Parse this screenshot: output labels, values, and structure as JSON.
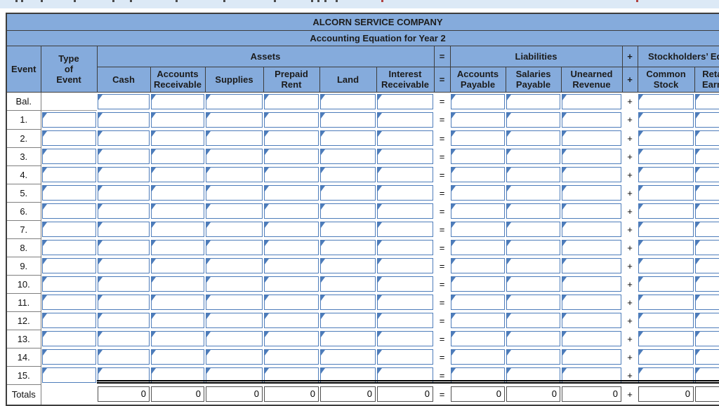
{
  "colors": {
    "header_blue": "#85abdc",
    "input_border_blue": "#4d7cba",
    "strip_blue": "#dce9f6"
  },
  "table": {
    "title": "ALCORN SERVICE COMPANY",
    "subtitle": "Accounting Equation for Year 2",
    "operators": {
      "equals": "=",
      "plus": "+"
    },
    "columns": {
      "event": "Event",
      "type_of_event": "Type\nof\nEvent",
      "assets_group": "Assets",
      "liabilities_group": "Liabilities",
      "equity_group": "Stockholders’ Equity",
      "asset_columns": [
        "Cash",
        "Accounts\nReceivable",
        "Supplies",
        "Prepaid\nRent",
        "Land",
        "Interest\nReceivable"
      ],
      "liability_columns": [
        "Accounts\nPayable",
        "Salaries\nPayable",
        "Unearned\nRevenue"
      ],
      "equity_columns": [
        "Common\nStock",
        "Retained\nEarnings"
      ]
    },
    "rows": [
      {
        "label": "Bal.",
        "has_type_input": false
      },
      {
        "label": "1.",
        "has_type_input": true
      },
      {
        "label": "2.",
        "has_type_input": true
      },
      {
        "label": "3.",
        "has_type_input": true
      },
      {
        "label": "4.",
        "has_type_input": true
      },
      {
        "label": "5.",
        "has_type_input": true
      },
      {
        "label": "6.",
        "has_type_input": true
      },
      {
        "label": "7.",
        "has_type_input": true
      },
      {
        "label": "8.",
        "has_type_input": true
      },
      {
        "label": "9.",
        "has_type_input": true
      },
      {
        "label": "10.",
        "has_type_input": true
      },
      {
        "label": "11.",
        "has_type_input": true
      },
      {
        "label": "12.",
        "has_type_input": true
      },
      {
        "label": "13.",
        "has_type_input": true
      },
      {
        "label": "14.",
        "has_type_input": true
      },
      {
        "label": "15.",
        "has_type_input": true
      }
    ],
    "totals": {
      "label": "Totals",
      "cash": "0",
      "accounts_receivable": "0",
      "supplies": "0",
      "prepaid_rent": "0",
      "land": "0",
      "interest_receivable": "0",
      "accounts_payable": "0",
      "salaries_payable": "0",
      "unearned_revenue": "0",
      "common_stock": "0",
      "retained_earnings": ""
    }
  }
}
